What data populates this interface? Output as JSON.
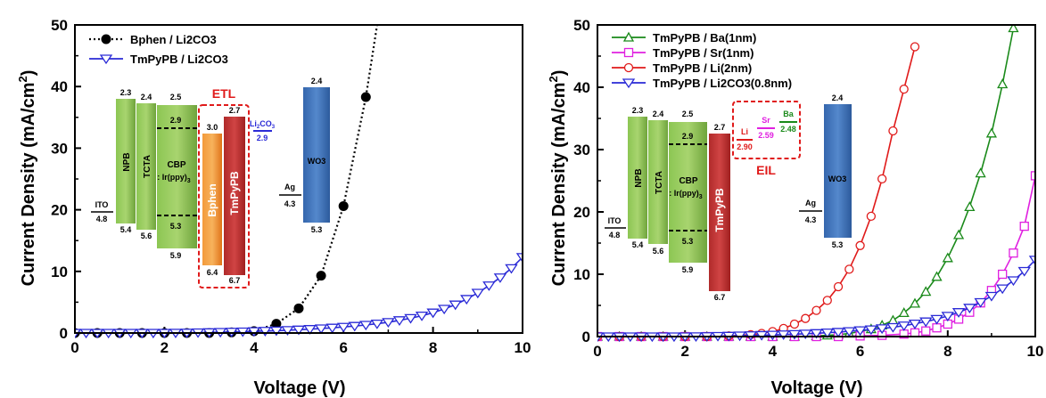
{
  "chart_data": [
    {
      "type": "line",
      "xlabel": "Voltage (V)",
      "ylabel": "Current Density (mA/cm²)",
      "xlim": [
        0,
        10
      ],
      "ylim": [
        0,
        50
      ],
      "xticks": [
        "0",
        "2",
        "4",
        "6",
        "8",
        "10"
      ],
      "yticks": [
        "0",
        "10",
        "20",
        "30",
        "40",
        "50"
      ],
      "legend_position": "top-left",
      "series": [
        {
          "name": "Bphen / Li2CO3",
          "color": "#000000",
          "marker": "filled-circle",
          "line": "dotted",
          "markers_x": [
            0,
            0.5,
            1.0,
            1.5,
            2.0,
            2.5,
            3.0,
            3.5,
            4.0,
            4.5,
            5.0,
            5.5,
            6.0,
            6.5
          ],
          "markers_y": [
            0,
            0,
            0,
            0,
            0,
            0,
            0,
            0.1,
            0.3,
            1.5,
            4.0,
            9.3,
            20.6,
            38.3
          ],
          "curve_x": [
            0,
            3,
            4,
            4.5,
            5,
            5.5,
            6,
            6.5,
            6.75
          ],
          "curve_y": [
            0,
            0,
            0.3,
            1.5,
            4.0,
            9.3,
            20.6,
            38.3,
            50
          ]
        },
        {
          "name": "TmPyPB / Li2CO3",
          "color": "#2a2ad6",
          "marker": "open-down-triangle",
          "line": "solid",
          "markers_x": [
            0,
            0.25,
            0.5,
            0.75,
            1.0,
            1.25,
            1.5,
            1.75,
            2.0,
            2.25,
            2.5,
            2.75,
            3.0,
            3.25,
            3.5,
            3.75,
            4.0,
            4.25,
            4.5,
            4.75,
            5.0,
            5.25,
            5.5,
            5.75,
            6.0,
            6.25,
            6.5,
            6.75,
            7.0,
            7.25,
            7.5,
            7.75,
            8.0,
            8.25,
            8.5,
            8.75,
            9.0,
            9.25,
            9.5,
            9.75,
            10.0
          ],
          "markers_y": [
            0,
            0,
            0,
            0,
            0,
            0,
            0,
            0,
            0,
            0.02,
            0.04,
            0.07,
            0.1,
            0.14,
            0.18,
            0.22,
            0.27,
            0.32,
            0.38,
            0.45,
            0.53,
            0.62,
            0.72,
            0.84,
            0.98,
            1.13,
            1.3,
            1.5,
            1.75,
            2.05,
            2.4,
            2.8,
            3.3,
            3.9,
            4.6,
            5.5,
            6.5,
            7.7,
            9.0,
            10.5,
            12.3
          ]
        }
      ],
      "inset": {
        "title": "ETL",
        "layers": [
          {
            "name": "ITO",
            "color": "#000000",
            "top": "",
            "bottom": "4.8",
            "line_label": "ITO",
            "line_value": "4.8"
          },
          {
            "name": "NPB",
            "color": "#7ab24a",
            "top": "2.3",
            "bottom": "5.4"
          },
          {
            "name": "TCTA",
            "color": "#7ab24a",
            "top": "2.4",
            "bottom": "5.6"
          },
          {
            "name": "CBP",
            "subname": ": Ir(ppy)",
            "subscript": "3",
            "color": "#7ab24a",
            "top": "2.5",
            "bottom": "5.9",
            "dopant_top": "2.9",
            "dopant_bottom": "5.3"
          },
          {
            "name": "Bphen",
            "color": "#f0851e",
            "top": "3.0",
            "bottom": "6.4"
          },
          {
            "name": "TmPyPB",
            "color": "#c23232",
            "top": "2.7",
            "bottom": "6.7"
          },
          {
            "name": "Li2CO3",
            "label_main": "Li",
            "label_sub": "2",
            "label_rest": "CO",
            "label_sub2": "3",
            "color": "#2a2ad6",
            "value": "2.9"
          },
          {
            "name": "Ag",
            "color": "#000000",
            "value": "4.3"
          },
          {
            "name": "WO3",
            "color": "#3d6fb6",
            "top": "2.4",
            "bottom": "5.3"
          }
        ]
      }
    },
    {
      "type": "line",
      "xlabel": "Voltage (V)",
      "ylabel": "Current Density (mA/cm²)",
      "xlim": [
        0,
        10
      ],
      "ylim": [
        0,
        50
      ],
      "xticks": [
        "0",
        "2",
        "4",
        "6",
        "8",
        "10"
      ],
      "yticks": [
        "0",
        "10",
        "20",
        "30",
        "40",
        "50"
      ],
      "legend_position": "top-left",
      "series": [
        {
          "name": "TmPyPB / Ba(1nm)",
          "color": "#1a8a1a",
          "marker": "open-up-triangle",
          "line": "solid",
          "markers_x": [
            0,
            0.5,
            1,
            1.5,
            2,
            2.5,
            3,
            3.5,
            4,
            4.5,
            5,
            5.25,
            5.5,
            5.75,
            6,
            6.25,
            6.5,
            6.75,
            7,
            7.25,
            7.5,
            7.75,
            8,
            8.25,
            8.5,
            8.75,
            9,
            9.25,
            9.5
          ],
          "markers_y": [
            0,
            0,
            0,
            0,
            0,
            0,
            0,
            0,
            0,
            0,
            0.1,
            0.2,
            0.3,
            0.5,
            0.8,
            1.2,
            1.8,
            2.6,
            3.8,
            5.3,
            7.2,
            9.6,
            12.6,
            16.3,
            20.8,
            26.2,
            32.6,
            40.5,
            49.5
          ]
        },
        {
          "name": "TmPyPB / Sr(1nm)",
          "color": "#e020e0",
          "marker": "open-square",
          "line": "solid",
          "markers_x": [
            0,
            0.5,
            1,
            1.5,
            2,
            2.5,
            3,
            3.5,
            4,
            4.5,
            5,
            5.5,
            6,
            6.5,
            7,
            7.25,
            7.5,
            7.75,
            8,
            8.25,
            8.5,
            8.75,
            9,
            9.25,
            9.5,
            9.75,
            10
          ],
          "markers_y": [
            0,
            0,
            0,
            0,
            0,
            0,
            0,
            0,
            0,
            0,
            0,
            0,
            0.1,
            0.2,
            0.4,
            0.6,
            0.9,
            1.4,
            2.0,
            2.8,
            3.9,
            5.4,
            7.4,
            10.0,
            13.4,
            17.7,
            25.8
          ]
        },
        {
          "name": "TmPyPB / Li(2nm)",
          "color": "#e01a1a",
          "marker": "open-circle",
          "line": "solid",
          "markers_x": [
            0,
            0.5,
            1,
            1.5,
            2,
            2.5,
            3,
            3.5,
            3.75,
            4,
            4.25,
            4.5,
            4.75,
            5,
            5.25,
            5.5,
            5.75,
            6,
            6.25,
            6.5,
            6.75,
            7,
            7.25
          ],
          "markers_y": [
            0,
            0,
            0,
            0,
            0,
            0,
            0.1,
            0.3,
            0.5,
            0.8,
            1.3,
            2.0,
            2.9,
            4.2,
            5.8,
            8.0,
            10.8,
            14.6,
            19.3,
            25.3,
            33.0,
            39.7,
            46.5
          ]
        },
        {
          "name": "TmPyPB / Li2CO3(0.8nm)",
          "color": "#2a2ad6",
          "marker": "open-down-triangle",
          "line": "solid",
          "markers_x": [
            0,
            0.25,
            0.5,
            0.75,
            1.0,
            1.25,
            1.5,
            1.75,
            2.0,
            2.25,
            2.5,
            2.75,
            3.0,
            3.25,
            3.5,
            3.75,
            4.0,
            4.25,
            4.5,
            4.75,
            5.0,
            5.25,
            5.5,
            5.75,
            6.0,
            6.25,
            6.5,
            6.75,
            7.0,
            7.25,
            7.5,
            7.75,
            8.0,
            8.25,
            8.5,
            8.75,
            9.0,
            9.25,
            9.5,
            9.75,
            10.0
          ],
          "markers_y": [
            0,
            0,
            0,
            0,
            0,
            0,
            0,
            0,
            0,
            0.02,
            0.04,
            0.07,
            0.1,
            0.14,
            0.18,
            0.22,
            0.27,
            0.32,
            0.38,
            0.45,
            0.53,
            0.62,
            0.72,
            0.84,
            0.98,
            1.13,
            1.3,
            1.5,
            1.75,
            2.05,
            2.4,
            2.8,
            3.3,
            3.9,
            4.6,
            5.5,
            6.5,
            7.7,
            9.0,
            10.5,
            12.3
          ]
        }
      ],
      "inset": {
        "title": "EIL",
        "layers": [
          {
            "name": "ITO",
            "value": "4.8"
          },
          {
            "name": "NPB",
            "top": "2.3",
            "bottom": "5.4"
          },
          {
            "name": "TCTA",
            "top": "2.4",
            "bottom": "5.6"
          },
          {
            "name": "CBP",
            "subname": ": Ir(ppy)",
            "subscript": "3",
            "top": "2.5",
            "bottom": "5.9",
            "dopant_top": "2.9",
            "dopant_bottom": "5.3"
          },
          {
            "name": "TmPyPB",
            "top": "2.7",
            "bottom": "6.7"
          },
          {
            "name": "Li",
            "color": "#e01a1a",
            "value": "2.90"
          },
          {
            "name": "Sr",
            "color": "#e020e0",
            "value": "2.59"
          },
          {
            "name": "Ba",
            "color": "#1a8a1a",
            "value": "2.48"
          },
          {
            "name": "Ag",
            "value": "4.3"
          },
          {
            "name": "WO3",
            "top": "2.4",
            "bottom": "5.3"
          }
        ]
      }
    }
  ]
}
